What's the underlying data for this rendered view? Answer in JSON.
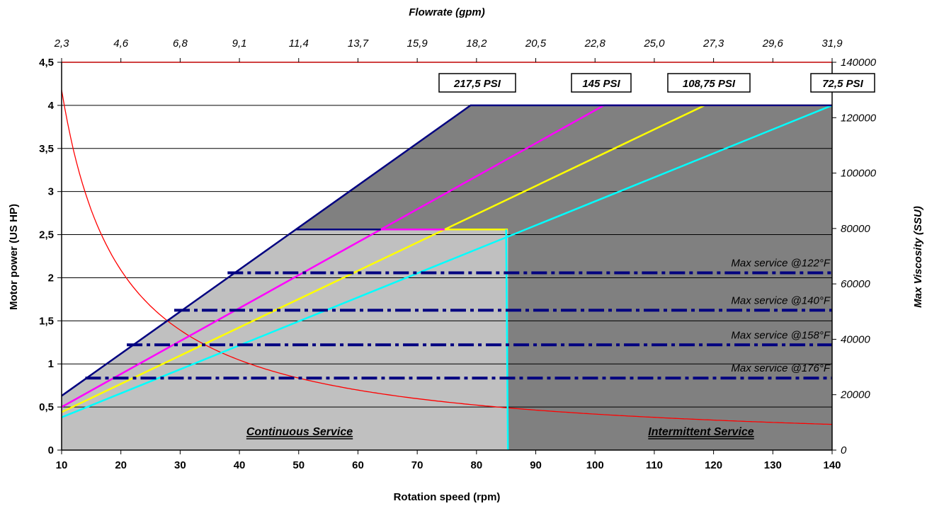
{
  "chart_data": {
    "type": "line",
    "xlabel": "Rotation speed (rpm)",
    "ylabel": "Motor power (US HP)",
    "x2label": "Flowrate (gpm)",
    "y2label": "Max Viscosity (SSU)",
    "xlim": [
      10,
      140
    ],
    "ylim": [
      0,
      4.5
    ],
    "y2lim": [
      0,
      140000
    ],
    "x_ticks": [
      "10",
      "20",
      "30",
      "40",
      "50",
      "60",
      "70",
      "80",
      "90",
      "100",
      "110",
      "120",
      "130",
      "140"
    ],
    "y_ticks": [
      "0",
      "0,5",
      "1",
      "1,5",
      "2",
      "2,5",
      "3",
      "3,5",
      "4",
      "4,5"
    ],
    "x2_ticks": [
      "2,3",
      "4,6",
      "6,8",
      "9,1",
      "11,4",
      "13,7",
      "15,9",
      "18,2",
      "20,5",
      "22,8",
      "25,0",
      "27,3",
      "29,6",
      "31,9"
    ],
    "y2_ticks": [
      "0",
      "20000",
      "40000",
      "60000",
      "80000",
      "100000",
      "120000",
      "140000"
    ],
    "grid": true,
    "colors": {
      "continuous_fill": "#c0c0c0",
      "intermittent_fill": "#808080",
      "outline": "#000080",
      "viscosity_curve": "#ff0000",
      "psi_217": "#000080",
      "psi_145": "#ff00ff",
      "psi_108": "#ffff00",
      "psi_72": "#00ffff",
      "service_lines": "#000080"
    },
    "series": [
      {
        "name": "217,5 PSI",
        "color": "#000080",
        "x": [
          10,
          79,
          140
        ],
        "y": [
          0.63,
          4.0,
          4.0
        ]
      },
      {
        "name": "145 PSI",
        "color": "#ff00ff",
        "x": [
          10,
          101.5,
          140
        ],
        "y": [
          0.5,
          4.0,
          4.0
        ]
      },
      {
        "name": "108,75 PSI",
        "color": "#ffff00",
        "x": [
          10,
          118.5,
          140
        ],
        "y": [
          0.44,
          4.0,
          4.0
        ]
      },
      {
        "name": "72,5 PSI",
        "color": "#00ffff",
        "x": [
          10,
          140
        ],
        "y": [
          0.38,
          4.0
        ]
      }
    ],
    "continuous_limit": {
      "power": 2.56,
      "speed": 85.3
    },
    "viscosity_curve": {
      "k": 1300000,
      "x_start": 10,
      "x_end": 140
    },
    "service_lines": [
      {
        "label": "Max service @122°F",
        "viscosity": 64000,
        "x_start": 38
      },
      {
        "label": "Max service @140°F",
        "viscosity": 50500,
        "x_start": 29
      },
      {
        "label": "Max service @158°F",
        "viscosity": 38000,
        "x_start": 21
      },
      {
        "label": "Max service @176°F",
        "viscosity": 26000,
        "x_start": 14
      }
    ],
    "zone_labels": {
      "continuous": "Continuous Service",
      "intermittent": "Intermittent Service"
    }
  }
}
